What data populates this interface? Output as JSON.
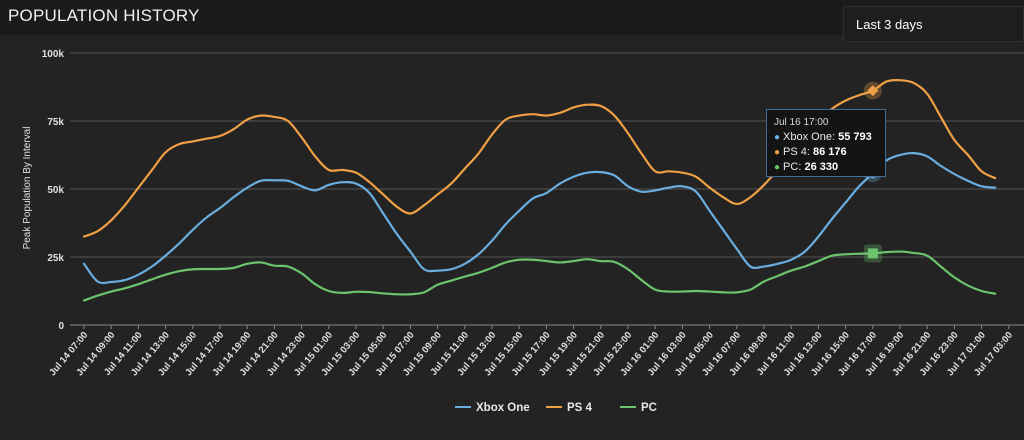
{
  "header": {
    "title": "POPULATION HISTORY"
  },
  "range_select": {
    "value": "Last 3 days"
  },
  "tooltip": {
    "date": "Jul 16 17:00",
    "rows": [
      {
        "label": "Xbox One: ",
        "value": "55 793",
        "color": "#6aaee0"
      },
      {
        "label": "PS 4: ",
        "value": "86 176",
        "color": "#f0a044"
      },
      {
        "label": "PC: ",
        "value": "26 330",
        "color": "#6cc46c"
      }
    ]
  },
  "chart_data": {
    "type": "line",
    "ylabel": "Peak Population By Interval",
    "ylim": [
      0,
      100000
    ],
    "y_ticks": [
      0,
      25000,
      50000,
      75000,
      100000
    ],
    "y_tick_labels": [
      "0",
      "25k",
      "50k",
      "75k",
      "100k"
    ],
    "x_tick_labels": [
      "Jul 14 07:00",
      "Jul 14 09:00",
      "Jul 14 11:00",
      "Jul 14 13:00",
      "Jul 14 15:00",
      "Jul 14 17:00",
      "Jul 14 19:00",
      "Jul 14 21:00",
      "Jul 14 23:00",
      "Jul 15 01:00",
      "Jul 15 03:00",
      "Jul 15 05:00",
      "Jul 15 07:00",
      "Jul 15 09:00",
      "Jul 15 11:00",
      "Jul 15 13:00",
      "Jul 15 15:00",
      "Jul 15 17:00",
      "Jul 15 19:00",
      "Jul 15 21:00",
      "Jul 15 23:00",
      "Jul 16 01:00",
      "Jul 16 03:00",
      "Jul 16 05:00",
      "Jul 16 07:00",
      "Jul 16 09:00",
      "Jul 16 11:00",
      "Jul 16 13:00",
      "Jul 16 15:00",
      "Jul 16 17:00",
      "Jul 16 19:00",
      "Jul 16 21:00",
      "Jul 16 23:00",
      "Jul 17 01:00",
      "Jul 17 03:00"
    ],
    "x_start": "Jul 14 07:00",
    "x_step": "1 hour",
    "legend_position": "bottom-center",
    "highlight_index": 58,
    "series": [
      {
        "name": "Xbox One",
        "color": "#6aaee0",
        "values": [
          22500,
          16000,
          15800,
          16500,
          18500,
          21500,
          25500,
          30000,
          35000,
          39500,
          43000,
          47000,
          50500,
          53000,
          53200,
          53000,
          51000,
          49500,
          51500,
          52500,
          52000,
          48500,
          41000,
          33500,
          27000,
          20500,
          20000,
          20500,
          22500,
          26000,
          31000,
          37000,
          42000,
          46500,
          48500,
          52000,
          54500,
          56000,
          56200,
          55000,
          51000,
          49000,
          49500,
          50500,
          51000,
          49000,
          42000,
          35000,
          28000,
          21500,
          21500,
          22500,
          24000,
          27000,
          32500,
          39000,
          45000,
          51000,
          55793,
          60500,
          62500,
          63200,
          62000,
          58500,
          55500,
          53000,
          51000,
          50500
        ]
      },
      {
        "name": "PS 4",
        "color": "#f0a044",
        "values": [
          32500,
          34500,
          38500,
          44000,
          50500,
          57000,
          63500,
          66500,
          67500,
          68500,
          69500,
          72000,
          75500,
          77000,
          76500,
          75000,
          69000,
          62000,
          57000,
          57000,
          56000,
          52500,
          48000,
          43500,
          41000,
          44000,
          48000,
          52000,
          57500,
          63000,
          70000,
          75500,
          77000,
          77500,
          77000,
          78000,
          80000,
          81000,
          80500,
          77000,
          70500,
          63000,
          56500,
          56500,
          56000,
          54500,
          50500,
          47000,
          44500,
          47000,
          51500,
          57000,
          63000,
          69000,
          75000,
          79500,
          82500,
          84500,
          86176,
          89500,
          90000,
          89000,
          85000,
          76500,
          68000,
          62500,
          56500,
          54000
        ]
      },
      {
        "name": "PC",
        "color": "#6cc46c",
        "values": [
          9000,
          10800,
          12300,
          13500,
          15000,
          16800,
          18500,
          19800,
          20500,
          20600,
          20600,
          21000,
          22500,
          23000,
          21800,
          21500,
          19000,
          15000,
          12500,
          11800,
          12200,
          12100,
          11600,
          11300,
          11300,
          12000,
          14800,
          16300,
          17800,
          19200,
          21000,
          23000,
          24000,
          24000,
          23500,
          23000,
          23500,
          24200,
          23500,
          23200,
          20500,
          16500,
          13000,
          12300,
          12300,
          12500,
          12300,
          12000,
          12000,
          13000,
          16000,
          18000,
          20000,
          21500,
          23500,
          25500,
          26000,
          26200,
          26330,
          26800,
          27000,
          26500,
          25500,
          21500,
          17500,
          14500,
          12500,
          11500
        ]
      }
    ]
  }
}
